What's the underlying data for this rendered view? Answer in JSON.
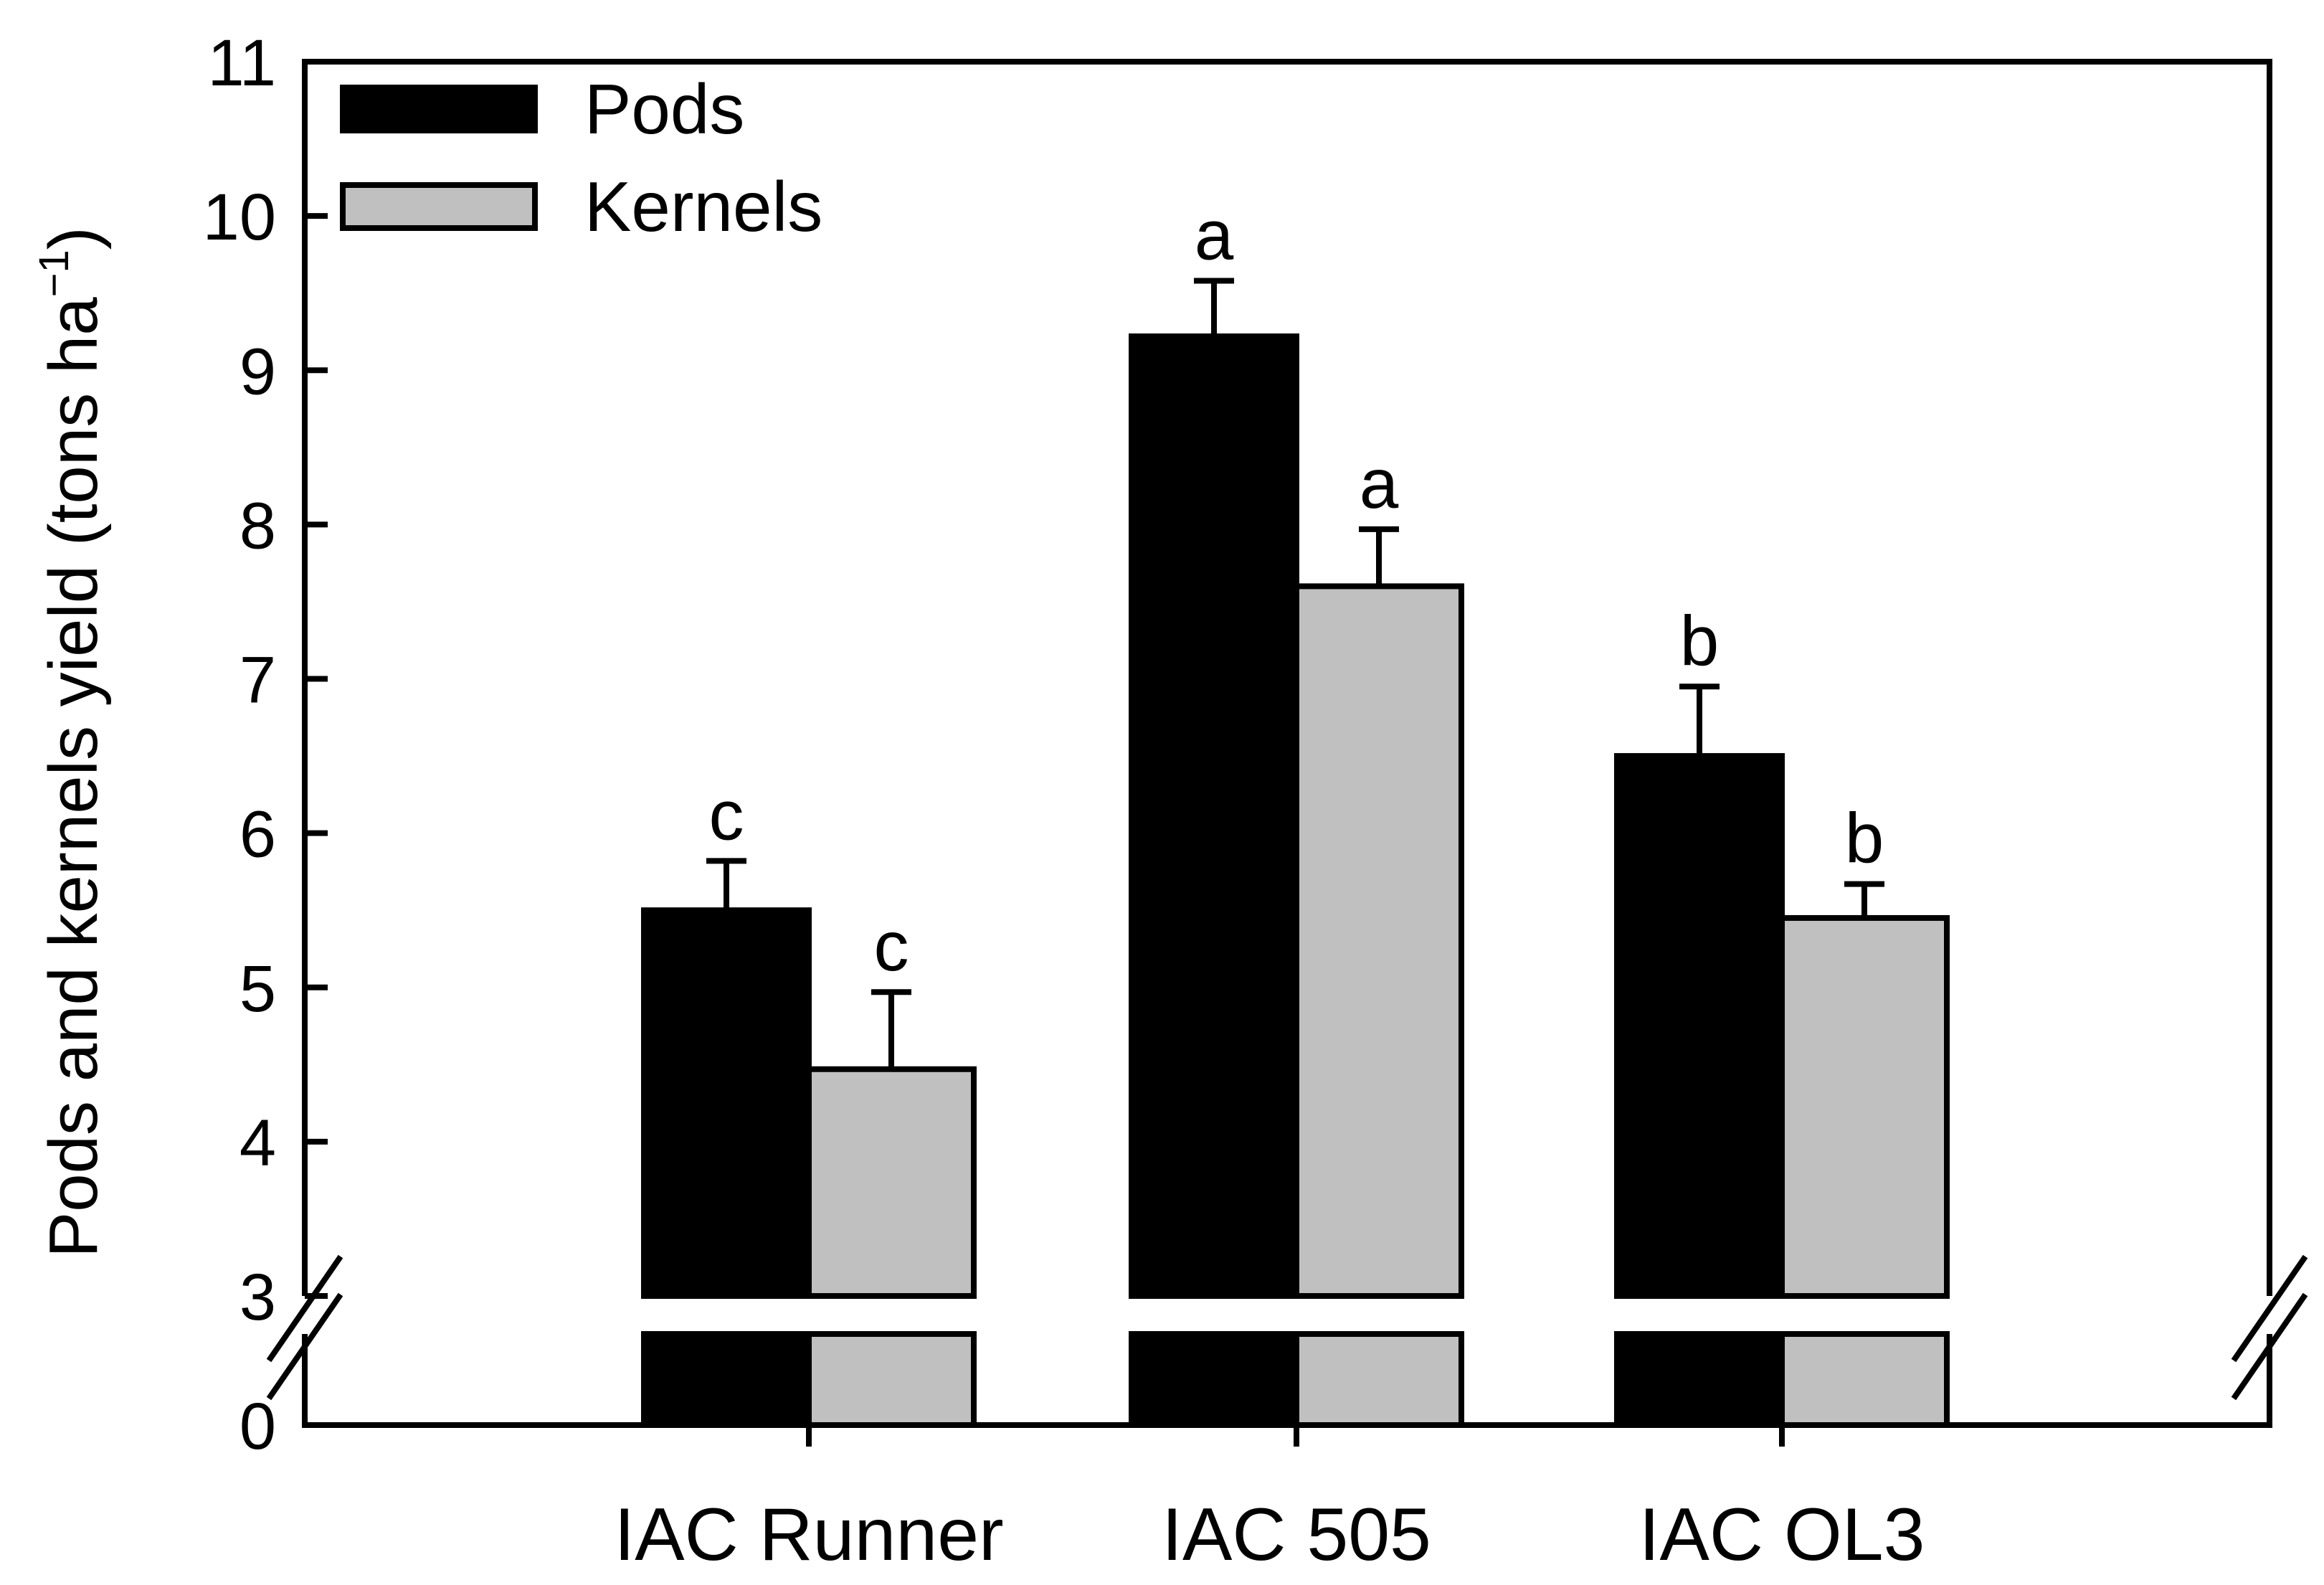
{
  "chart_data": {
    "type": "bar",
    "title": "",
    "xlabel": "",
    "ylabel": {
      "text": "Pods and kernels yield (tons ha",
      "superscript": "−1",
      "suffix": ")"
    },
    "ylim": [
      0,
      11
    ],
    "axis_break": [
      0,
      3
    ],
    "yticks": [
      "0",
      "3",
      "4",
      "5",
      "6",
      "7",
      "8",
      "9",
      "10",
      "11"
    ],
    "categories": [
      "IAC Runner",
      "IAC 505",
      "IAC OL3"
    ],
    "legend": {
      "position": "top-left"
    },
    "series": [
      {
        "name": "Pods",
        "color": "#000000",
        "values": [
          5.5,
          9.22,
          6.5
        ],
        "errors": [
          0.32,
          0.36,
          0.45
        ],
        "letters": [
          "c",
          "a",
          "b"
        ]
      },
      {
        "name": "Kernels",
        "color": "#c0c0c0",
        "values": [
          4.47,
          7.6,
          5.45
        ],
        "errors": [
          0.5,
          0.37,
          0.22
        ],
        "letters": [
          "c",
          "a",
          "b"
        ]
      }
    ]
  }
}
